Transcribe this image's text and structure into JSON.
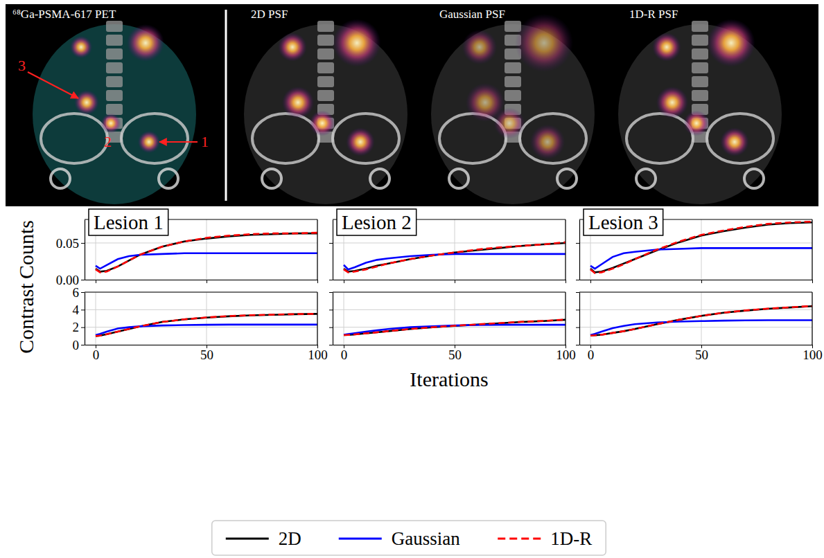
{
  "image_panels": {
    "titles": [
      "⁶⁸Ga-PSMA-617 PET",
      "2D PSF",
      "Gaussian PSF",
      "1D-R PSF"
    ],
    "lesion_labels": [
      "1",
      "2",
      "3"
    ]
  },
  "chart_data": [
    {
      "type": "line",
      "title": "Lesion 1",
      "ylabel": "Counts",
      "x": [
        0,
        2,
        5,
        10,
        15,
        20,
        30,
        40,
        50,
        60,
        70,
        80,
        90,
        100
      ],
      "xlim": [
        -5,
        100
      ],
      "xticks": [
        0,
        50,
        100
      ],
      "ylim": [
        0,
        0.082
      ],
      "yticks": [
        {
          "value": 0,
          "label": "0.00"
        },
        {
          "value": 0.05,
          "label": "0.05"
        }
      ],
      "grid": true,
      "legend": "bottom",
      "tick_labels": "y",
      "series": [
        {
          "name": "2D",
          "color": "#000000",
          "line_style": "solid",
          "values": [
            0.015,
            0.011,
            0.012,
            0.018,
            0.026,
            0.034,
            0.045,
            0.052,
            0.056,
            0.059,
            0.061,
            0.062,
            0.063,
            0.063
          ]
        },
        {
          "name": "Gaussian",
          "color": "#0000ff",
          "line_style": "solid",
          "values": [
            0.019,
            0.015,
            0.02,
            0.028,
            0.032,
            0.034,
            0.035,
            0.036,
            0.036,
            0.036,
            0.036,
            0.036,
            0.036,
            0.036
          ]
        },
        {
          "name": "1D-R",
          "color": "#ff0000",
          "line_style": "dashed",
          "values": [
            0.014,
            0.01,
            0.011,
            0.018,
            0.026,
            0.034,
            0.045,
            0.052,
            0.057,
            0.06,
            0.062,
            0.063,
            0.063,
            0.064
          ]
        }
      ]
    },
    {
      "type": "line",
      "title": "Lesion 2",
      "x": [
        0,
        2,
        5,
        10,
        15,
        20,
        30,
        40,
        50,
        60,
        70,
        80,
        90,
        100
      ],
      "xlim": [
        -5,
        100
      ],
      "xticks": [
        0,
        50,
        100
      ],
      "ylim": [
        0,
        0.082
      ],
      "yticks": [
        {
          "value": 0,
          "label": "0.00"
        },
        {
          "value": 0.05,
          "label": "0.05"
        }
      ],
      "grid": true,
      "tick_labels": false,
      "series": [
        {
          "name": "2D",
          "color": "#000000",
          "line_style": "solid",
          "values": [
            0.015,
            0.011,
            0.012,
            0.015,
            0.019,
            0.022,
            0.028,
            0.033,
            0.037,
            0.04,
            0.043,
            0.046,
            0.048,
            0.05
          ]
        },
        {
          "name": "Gaussian",
          "color": "#0000ff",
          "line_style": "solid",
          "values": [
            0.02,
            0.014,
            0.017,
            0.023,
            0.027,
            0.029,
            0.032,
            0.034,
            0.035,
            0.035,
            0.035,
            0.035,
            0.035,
            0.035
          ]
        },
        {
          "name": "1D-R",
          "color": "#ff0000",
          "line_style": "dashed",
          "values": [
            0.014,
            0.01,
            0.011,
            0.014,
            0.018,
            0.022,
            0.028,
            0.033,
            0.037,
            0.041,
            0.044,
            0.046,
            0.048,
            0.051
          ]
        }
      ]
    },
    {
      "type": "line",
      "title": "Lesion 3",
      "x": [
        0,
        2,
        5,
        10,
        15,
        20,
        30,
        40,
        50,
        60,
        70,
        80,
        90,
        100
      ],
      "xlim": [
        -5,
        100
      ],
      "xticks": [
        0,
        50,
        100
      ],
      "ylim": [
        0,
        0.082
      ],
      "yticks": [
        {
          "value": 0,
          "label": "0.00"
        },
        {
          "value": 0.05,
          "label": "0.05"
        }
      ],
      "grid": true,
      "tick_labels": false,
      "series": [
        {
          "name": "2D",
          "color": "#000000",
          "line_style": "solid",
          "values": [
            0.015,
            0.01,
            0.011,
            0.016,
            0.022,
            0.028,
            0.04,
            0.051,
            0.06,
            0.066,
            0.071,
            0.075,
            0.077,
            0.078
          ]
        },
        {
          "name": "Gaussian",
          "color": "#0000ff",
          "line_style": "solid",
          "values": [
            0.019,
            0.015,
            0.021,
            0.031,
            0.036,
            0.038,
            0.041,
            0.042,
            0.043,
            0.043,
            0.043,
            0.043,
            0.043,
            0.043
          ]
        },
        {
          "name": "1D-R",
          "color": "#ff0000",
          "line_style": "dashed",
          "values": [
            0.014,
            0.009,
            0.01,
            0.015,
            0.021,
            0.028,
            0.041,
            0.052,
            0.061,
            0.067,
            0.072,
            0.076,
            0.078,
            0.079
          ]
        }
      ]
    },
    {
      "type": "line",
      "ylabel": "Contrast",
      "x": [
        0,
        2,
        5,
        10,
        15,
        20,
        30,
        40,
        50,
        60,
        70,
        80,
        90,
        100
      ],
      "xlim": [
        -5,
        100
      ],
      "xticks": [
        0,
        50,
        100
      ],
      "ylim": [
        0,
        6
      ],
      "yticks": [
        0,
        2,
        4,
        6
      ],
      "grid": true,
      "tick_labels": true,
      "series": [
        {
          "name": "2D",
          "color": "#000000",
          "line_style": "solid",
          "values": [
            1.0,
            1.05,
            1.2,
            1.5,
            1.8,
            2.1,
            2.6,
            2.9,
            3.1,
            3.25,
            3.35,
            3.42,
            3.48,
            3.52
          ]
        },
        {
          "name": "Gaussian",
          "color": "#0000ff",
          "line_style": "solid",
          "values": [
            1.1,
            1.25,
            1.5,
            1.85,
            2.0,
            2.1,
            2.2,
            2.25,
            2.28,
            2.3,
            2.3,
            2.3,
            2.3,
            2.3
          ]
        },
        {
          "name": "1D-R",
          "color": "#ff0000",
          "line_style": "dashed",
          "values": [
            1.0,
            1.05,
            1.2,
            1.5,
            1.8,
            2.1,
            2.6,
            2.9,
            3.12,
            3.27,
            3.37,
            3.44,
            3.5,
            3.53
          ]
        }
      ]
    },
    {
      "type": "line",
      "xlabel": "Iterations",
      "x": [
        0,
        2,
        5,
        10,
        15,
        20,
        30,
        40,
        50,
        60,
        70,
        80,
        90,
        100
      ],
      "xlim": [
        -5,
        100
      ],
      "xticks": [
        0,
        50,
        100
      ],
      "ylim": [
        0,
        6
      ],
      "yticks": [
        0,
        2,
        4,
        6
      ],
      "grid": true,
      "tick_labels": "x",
      "series": [
        {
          "name": "2D",
          "color": "#000000",
          "line_style": "solid",
          "values": [
            1.1,
            1.12,
            1.18,
            1.3,
            1.42,
            1.55,
            1.8,
            2.0,
            2.15,
            2.3,
            2.45,
            2.6,
            2.7,
            2.85
          ]
        },
        {
          "name": "Gaussian",
          "color": "#0000ff",
          "line_style": "solid",
          "values": [
            1.15,
            1.22,
            1.32,
            1.5,
            1.65,
            1.8,
            2.0,
            2.1,
            2.2,
            2.25,
            2.28,
            2.28,
            2.28,
            2.28
          ]
        },
        {
          "name": "1D-R",
          "color": "#ff0000",
          "line_style": "dashed",
          "values": [
            1.1,
            1.12,
            1.18,
            1.3,
            1.42,
            1.55,
            1.8,
            2.0,
            2.17,
            2.32,
            2.47,
            2.62,
            2.72,
            2.87
          ]
        }
      ]
    },
    {
      "type": "line",
      "x": [
        0,
        2,
        5,
        10,
        15,
        20,
        30,
        40,
        50,
        60,
        70,
        80,
        90,
        100
      ],
      "xlim": [
        -5,
        100
      ],
      "xticks": [
        0,
        50,
        100
      ],
      "ylim": [
        0,
        6
      ],
      "yticks": [
        0,
        2,
        4,
        6
      ],
      "grid": true,
      "tick_labels": "x",
      "series": [
        {
          "name": "2D",
          "color": "#000000",
          "line_style": "solid",
          "values": [
            1.05,
            1.08,
            1.15,
            1.35,
            1.55,
            1.8,
            2.35,
            2.85,
            3.3,
            3.65,
            3.9,
            4.1,
            4.25,
            4.4
          ]
        },
        {
          "name": "Gaussian",
          "color": "#0000ff",
          "line_style": "solid",
          "values": [
            1.1,
            1.25,
            1.5,
            1.9,
            2.15,
            2.35,
            2.55,
            2.65,
            2.7,
            2.75,
            2.78,
            2.8,
            2.8,
            2.8
          ]
        },
        {
          "name": "1D-R",
          "color": "#ff0000",
          "line_style": "dashed",
          "values": [
            1.05,
            1.08,
            1.15,
            1.35,
            1.55,
            1.8,
            2.35,
            2.85,
            3.3,
            3.66,
            3.92,
            4.12,
            4.27,
            4.42
          ]
        }
      ]
    }
  ]
}
